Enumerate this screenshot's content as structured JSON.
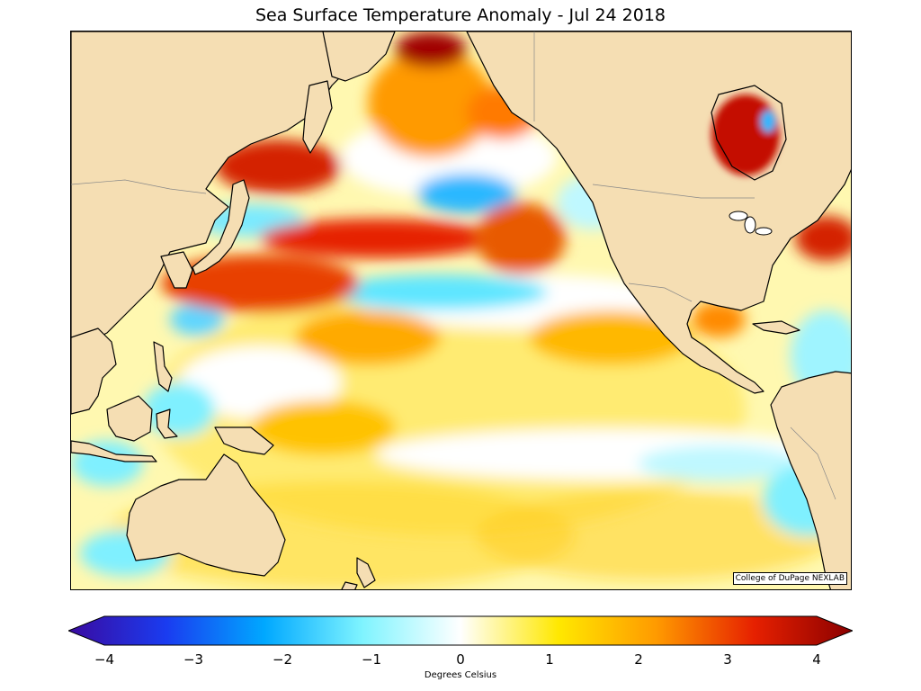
{
  "title": "Sea Surface Temperature Anomaly - Jul 24 2018",
  "credit": "College of DuPage NEXLAB",
  "colorbar": {
    "label": "Degrees Celsius",
    "range": [
      -4,
      4
    ],
    "ticks": [
      "−4",
      "−3",
      "−2",
      "−1",
      "0",
      "1",
      "2",
      "3",
      "4"
    ],
    "colors": {
      "neg4": "#3a0aa0",
      "neg3": "#1a3cf0",
      "neg2": "#00a8ff",
      "neg1": "#7ff4ff",
      "zero": "#ffffff",
      "pos1": "#ffe800",
      "pos2": "#ff9a00",
      "pos3": "#e62000",
      "pos4": "#8a0000"
    }
  },
  "map": {
    "land_color": "#f5deb3",
    "ocean_base": "#fff59a",
    "coastline_color": "#000000",
    "border_color": "#888888"
  }
}
